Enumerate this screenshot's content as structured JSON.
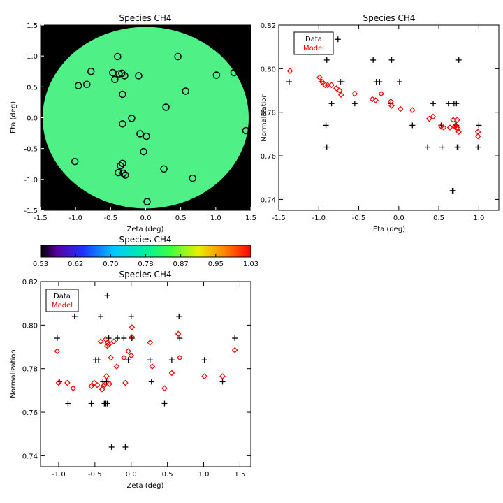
{
  "colors": {
    "ink": "#000000",
    "model": "#ff0000",
    "map_fill": "#4ff085",
    "map_background": "#000000"
  },
  "colorbar": {
    "title": "Species CH4",
    "range": [
      0.53,
      1.03
    ],
    "tick_labels": [
      "0.53",
      "0.62",
      "0.70",
      "0.78",
      "0.87",
      "0.95",
      "1.03"
    ]
  },
  "chart_data": [
    {
      "id": "map",
      "type": "scatter",
      "title": "Species CH4",
      "xlabel": "Zeta (deg)",
      "ylabel": "Eta (deg)",
      "xlim": [
        -1.5,
        1.5
      ],
      "ylim": [
        -1.5,
        1.5
      ],
      "xticks": [
        "-1.5",
        "-1.0",
        "-0.5",
        "0.0",
        "0.5",
        "1.0",
        "1.5"
      ],
      "yticks": [
        "-1.5",
        "-1.0",
        "-0.5",
        "0.0",
        "0.5",
        "1.0",
        "1.5"
      ],
      "disk_radius_deg": 1.47,
      "points": [
        [
          -0.4,
          0.99
        ],
        [
          0.46,
          0.99
        ],
        [
          -0.78,
          0.75
        ],
        [
          -0.47,
          0.73
        ],
        [
          -0.38,
          0.71
        ],
        [
          -0.34,
          0.72
        ],
        [
          -0.3,
          0.68
        ],
        [
          -0.1,
          0.68
        ],
        [
          -0.44,
          0.62
        ],
        [
          -0.96,
          0.52
        ],
        [
          -0.84,
          0.54
        ],
        [
          1.01,
          0.69
        ],
        [
          1.26,
          0.73
        ],
        [
          0.57,
          0.43
        ],
        [
          -0.33,
          0.38
        ],
        [
          0.29,
          0.17
        ],
        [
          -0.2,
          -0.01
        ],
        [
          -0.33,
          -0.1
        ],
        [
          -0.08,
          -0.26
        ],
        [
          0.01,
          -0.3
        ],
        [
          1.43,
          -0.21
        ],
        [
          -1.01,
          -0.71
        ],
        [
          -0.03,
          -0.55
        ],
        [
          -0.33,
          -0.74
        ],
        [
          -0.36,
          -0.78
        ],
        [
          0.26,
          -0.83
        ],
        [
          -0.39,
          -0.89
        ],
        [
          -0.32,
          -0.9
        ],
        [
          -0.29,
          -0.93
        ],
        [
          0.67,
          -0.98
        ],
        [
          0.02,
          -1.36
        ]
      ]
    },
    {
      "id": "eta",
      "type": "scatter",
      "title": "Species CH4",
      "xlabel": "Eta (deg)",
      "ylabel": "Normalization",
      "xlim": [
        -1.5,
        1.25
      ],
      "ylim": [
        0.735,
        0.82
      ],
      "xticks": [
        -1.5,
        -1.0,
        -0.5,
        0.0,
        0.5,
        1.0
      ],
      "xtick_labels": [
        "-1.5",
        "-1.0",
        "-0.5",
        "0.0",
        "0.5",
        "1.0"
      ],
      "yticks": [
        0.74,
        0.76,
        0.78,
        0.8,
        0.82
      ],
      "ytick_labels": [
        "0.74",
        "0.76",
        "0.78",
        "0.80",
        "0.82"
      ],
      "legend": {
        "position": "top-left",
        "entries": [
          "Data",
          "Model"
        ]
      },
      "series": [
        {
          "name": "Data",
          "marker": "plus",
          "points": [
            [
              -1.37,
              0.794
            ],
            [
              -0.97,
              0.794
            ],
            [
              -0.9,
              0.804
            ],
            [
              -0.91,
              0.774
            ],
            [
              -0.9,
              0.764
            ],
            [
              -0.84,
              0.784
            ],
            [
              -0.76,
              0.8135
            ],
            [
              -0.73,
              0.794
            ],
            [
              -0.71,
              0.794
            ],
            [
              -0.55,
              0.784
            ],
            [
              -0.32,
              0.804
            ],
            [
              -0.28,
              0.794
            ],
            [
              -0.24,
              0.794
            ],
            [
              -0.1,
              0.784
            ],
            [
              -0.09,
              0.804
            ],
            [
              0.01,
              0.794
            ],
            [
              0.17,
              0.774
            ],
            [
              0.36,
              0.764
            ],
            [
              0.43,
              0.784
            ],
            [
              0.53,
              0.774
            ],
            [
              0.54,
              0.764
            ],
            [
              0.62,
              0.784
            ],
            [
              0.67,
              0.744
            ],
            [
              0.68,
              0.744
            ],
            [
              0.69,
              0.784
            ],
            [
              0.71,
              0.774
            ],
            [
              0.72,
              0.784
            ],
            [
              0.72,
              0.774
            ],
            [
              0.73,
              0.764
            ],
            [
              0.74,
              0.764
            ],
            [
              0.75,
              0.804
            ],
            [
              0.99,
              0.764
            ],
            [
              1.0,
              0.774
            ]
          ]
        },
        {
          "name": "Model",
          "marker": "diamond",
          "points": [
            [
              -1.36,
              0.799
            ],
            [
              -0.99,
              0.796
            ],
            [
              -0.96,
              0.794
            ],
            [
              -0.92,
              0.7925
            ],
            [
              -0.89,
              0.7925
            ],
            [
              -0.84,
              0.7925
            ],
            [
              -0.78,
              0.791
            ],
            [
              -0.74,
              0.79
            ],
            [
              -0.72,
              0.788
            ],
            [
              -0.55,
              0.7885
            ],
            [
              -0.33,
              0.786
            ],
            [
              -0.29,
              0.7855
            ],
            [
              -0.22,
              0.7885
            ],
            [
              -0.1,
              0.785
            ],
            [
              -0.09,
              0.783
            ],
            [
              0.02,
              0.7815
            ],
            [
              0.17,
              0.781
            ],
            [
              0.38,
              0.777
            ],
            [
              0.43,
              0.778
            ],
            [
              0.53,
              0.7735
            ],
            [
              0.56,
              0.773
            ],
            [
              0.64,
              0.773
            ],
            [
              0.68,
              0.7765
            ],
            [
              0.7,
              0.7735
            ],
            [
              0.71,
              0.774
            ],
            [
              0.72,
              0.773
            ],
            [
              0.73,
              0.7765
            ],
            [
              0.74,
              0.7725
            ],
            [
              0.75,
              0.771
            ],
            [
              0.99,
              0.771
            ],
            [
              0.99,
              0.769
            ]
          ]
        }
      ]
    },
    {
      "id": "zeta",
      "type": "scatter",
      "title": "Species CH4",
      "xlabel": "Zeta (deg)",
      "ylabel": "Normalization",
      "xlim": [
        -1.25,
        1.65
      ],
      "ylim": [
        0.735,
        0.82
      ],
      "xticks": [
        -1.0,
        -0.5,
        0.0,
        0.5,
        1.0,
        1.5
      ],
      "xtick_labels": [
        "-1.0",
        "-0.5",
        "0.0",
        "0.5",
        "1.0",
        "1.5"
      ],
      "yticks": [
        0.74,
        0.76,
        0.78,
        0.8,
        0.82
      ],
      "ytick_labels": [
        "0.74",
        "0.76",
        "0.78",
        "0.80",
        "0.82"
      ],
      "legend": {
        "position": "top-left",
        "entries": [
          "Data",
          "Model"
        ]
      },
      "series": [
        {
          "name": "Data",
          "marker": "plus",
          "points": [
            [
              -1.02,
              0.794
            ],
            [
              -0.99,
              0.774
            ],
            [
              -0.87,
              0.764
            ],
            [
              -0.78,
              0.804
            ],
            [
              -0.55,
              0.764
            ],
            [
              -0.49,
              0.784
            ],
            [
              -0.45,
              0.784
            ],
            [
              -0.42,
              0.804
            ],
            [
              -0.39,
              0.774
            ],
            [
              -0.37,
              0.764
            ],
            [
              -0.35,
              0.764
            ],
            [
              -0.34,
              0.774
            ],
            [
              -0.33,
              0.764
            ],
            [
              -0.33,
              0.8135
            ],
            [
              -0.32,
              0.774
            ],
            [
              -0.31,
              0.794
            ],
            [
              -0.27,
              0.744
            ],
            [
              -0.19,
              0.794
            ],
            [
              -0.1,
              0.794
            ],
            [
              -0.08,
              0.744
            ],
            [
              -0.04,
              0.784
            ],
            [
              0.0,
              0.804
            ],
            [
              0.01,
              0.794
            ],
            [
              0.26,
              0.784
            ],
            [
              0.28,
              0.774
            ],
            [
              0.46,
              0.764
            ],
            [
              0.56,
              0.784
            ],
            [
              0.66,
              0.804
            ],
            [
              0.67,
              0.794
            ],
            [
              1.01,
              0.784
            ],
            [
              1.26,
              0.774
            ],
            [
              1.43,
              0.794
            ]
          ]
        },
        {
          "name": "Model",
          "marker": "diamond",
          "points": [
            [
              -1.02,
              0.788
            ],
            [
              -1.0,
              0.7735
            ],
            [
              -0.88,
              0.7735
            ],
            [
              -0.8,
              0.771
            ],
            [
              -0.55,
              0.772
            ],
            [
              -0.51,
              0.7735
            ],
            [
              -0.47,
              0.7725
            ],
            [
              -0.42,
              0.7925
            ],
            [
              -0.4,
              0.7705
            ],
            [
              -0.38,
              0.772
            ],
            [
              -0.37,
              0.7725
            ],
            [
              -0.35,
              0.7935
            ],
            [
              -0.34,
              0.7765
            ],
            [
              -0.33,
              0.7905
            ],
            [
              -0.32,
              0.792
            ],
            [
              -0.31,
              0.791
            ],
            [
              -0.3,
              0.773
            ],
            [
              -0.28,
              0.785
            ],
            [
              -0.24,
              0.7925
            ],
            [
              -0.2,
              0.781
            ],
            [
              -0.1,
              0.785
            ],
            [
              -0.08,
              0.7735
            ],
            [
              -0.04,
              0.788
            ],
            [
              0.0,
              0.786
            ],
            [
              0.01,
              0.7945
            ],
            [
              0.01,
              0.799
            ],
            [
              0.26,
              0.792
            ],
            [
              0.29,
              0.781
            ],
            [
              0.46,
              0.771
            ],
            [
              0.56,
              0.778
            ],
            [
              0.65,
              0.796
            ],
            [
              0.67,
              0.785
            ],
            [
              1.01,
              0.7765
            ],
            [
              1.26,
              0.7765
            ],
            [
              1.43,
              0.7885
            ]
          ]
        }
      ]
    }
  ]
}
